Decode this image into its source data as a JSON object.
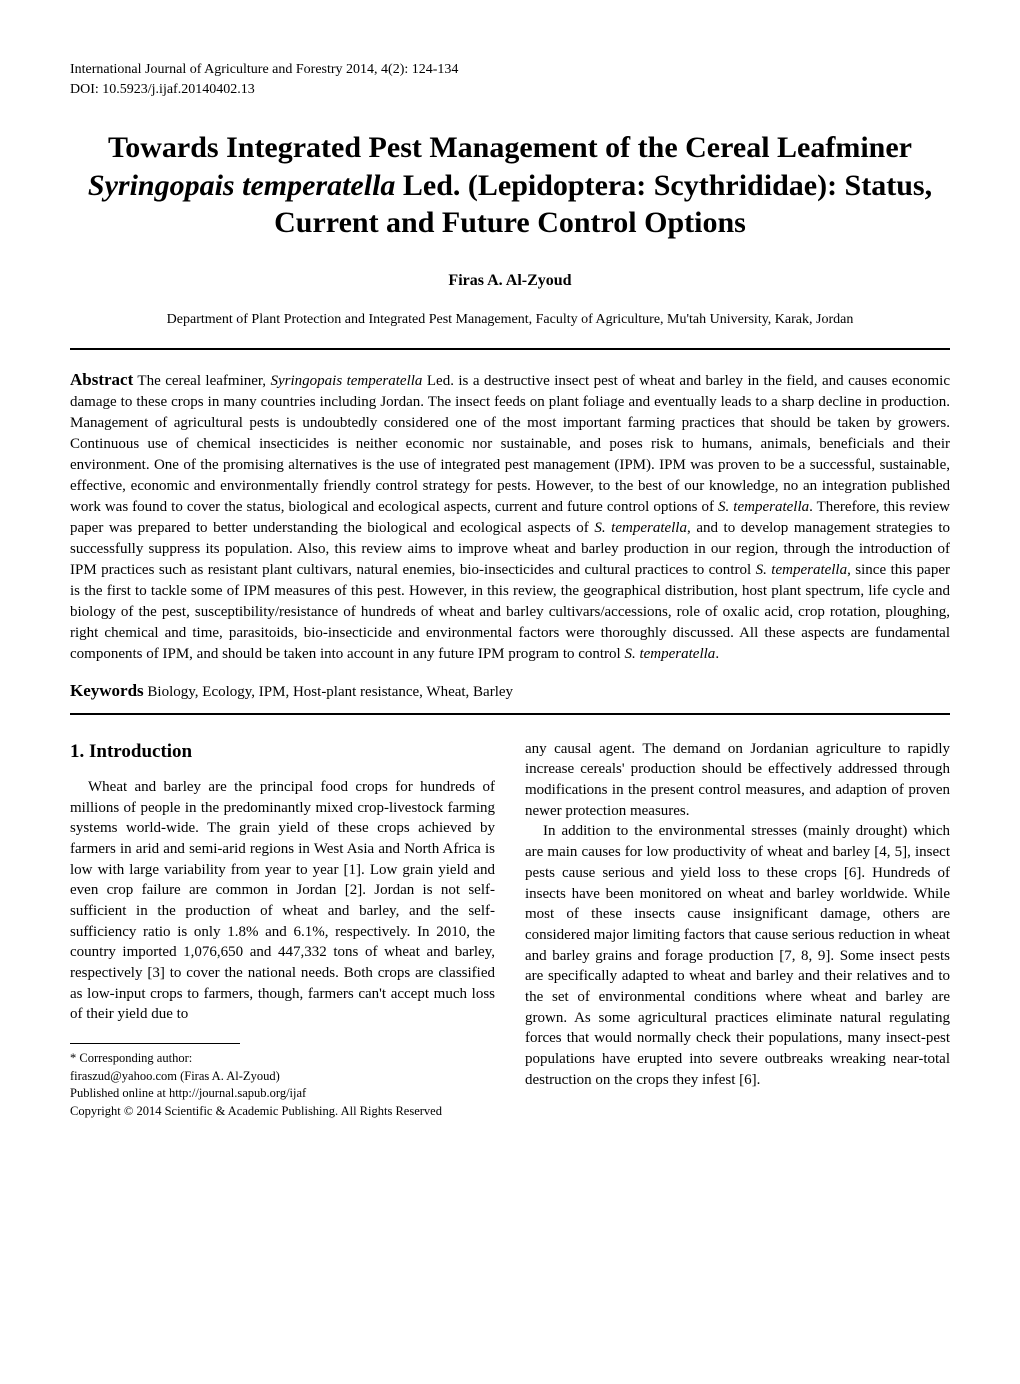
{
  "header": {
    "journal_line": "International Journal of Agriculture and Forestry 2014, 4(2): 124-134",
    "doi_line": "DOI: 10.5923/j.ijaf.20140402.13"
  },
  "title_parts": {
    "p1": "Towards Integrated Pest Management of the Cereal Leafminer ",
    "italic": "Syringopais temperatella",
    "p2": " Led. (Lepidoptera: Scythrididae): Status, Current and Future Control Options"
  },
  "author": "Firas A. Al-Zyoud",
  "affiliation": "Department of Plant Protection and Integrated Pest Management, Faculty of Agriculture, Mu'tah University, Karak, Jordan",
  "abstract": {
    "label": "Abstract",
    "pre": "  The cereal leafminer, ",
    "italic1": "Syringopais temperatella",
    "mid1": " Led. is a destructive insect pest of wheat and barley in the field, and causes economic damage to these crops in many countries including Jordan. The insect feeds on plant foliage and eventually leads to a sharp decline in production. Management of agricultural pests is undoubtedly considered one of the most important farming practices that should be taken by growers. Continuous use of chemical insecticides is neither economic nor sustainable, and poses risk to humans, animals, beneficials and their environment. One of the promising alternatives is the use of integrated pest management (IPM). IPM was proven to be a successful, sustainable, effective, economic and environmentally friendly control strategy for pests. However, to the best of our knowledge, no an integration published work was found to cover the status, biological and ecological aspects, current and future control options of ",
    "italic2": "S. temperatella",
    "mid2": ". Therefore, this review paper was prepared to better understanding the biological and ecological aspects of ",
    "italic3": "S. temperatella",
    "mid3": ", and to develop management strategies to successfully suppress its population. Also, this review aims to improve wheat and barley production in our region, through the introduction of IPM practices such as resistant plant cultivars, natural enemies, bio-insecticides and cultural practices to control ",
    "italic4": "S. temperatella",
    "mid4": ", since this paper is the first to tackle some of IPM measures of this pest. However, in this review, the geographical distribution, host plant spectrum, life cycle and biology of the pest, susceptibility/resistance of hundreds of wheat and barley cultivars/accessions, role of oxalic acid, crop rotation, ploughing, right chemical and time, parasitoids, bio-insecticide and environmental factors were thoroughly discussed. All these aspects are fundamental components of IPM, and should be taken into account in any future IPM program to control ",
    "italic5": "S. temperatella",
    "end": "."
  },
  "keywords": {
    "label": "Keywords",
    "text": "  Biology, Ecology, IPM, Host-plant resistance, Wheat, Barley"
  },
  "section1": {
    "heading": "1. Introduction",
    "left_p1": "Wheat and barley are the principal food crops for hundreds of millions of people in the predominantly mixed crop-livestock farming systems world-wide. The grain yield of these crops achieved by farmers in arid and semi-arid regions in West Asia and North Africa is low with large variability from year to year [1]. Low grain yield and even crop failure are common in Jordan [2]. Jordan is not self-sufficient in the production of wheat and barley, and the self-sufficiency ratio is only 1.8% and 6.1%, respectively. In 2010, the country imported 1,076,650 and 447,332 tons of wheat and barley, respectively [3] to cover the national needs. Both crops are classified as low-input crops to farmers, though, farmers can't accept much loss of their yield due to",
    "right_p1": "any causal agent. The demand on Jordanian agriculture to rapidly increase cereals' production should be effectively addressed through modifications in the present control measures, and adaption of proven newer protection measures.",
    "right_p2": "In addition to the environmental stresses (mainly drought) which are main causes for low productivity of wheat and barley [4, 5], insect pests cause serious and yield loss to these crops [6]. Hundreds of insects have been monitored on wheat and barley worldwide. While most of these insects cause insignificant damage, others are considered major limiting factors that cause serious reduction in wheat and barley grains and forage production [7, 8, 9]. Some insect pests are specifically adapted to wheat and barley and their relatives and to the set of environmental conditions where wheat and barley are grown. As some agricultural practices eliminate natural regulating forces that would normally check their populations, many insect-pest populations have erupted into severe outbreaks wreaking near-total destruction on the crops they infest [6]."
  },
  "footnote": {
    "l1": "* Corresponding author:",
    "l2": "firaszud@yahoo.com (Firas A. Al-Zyoud)",
    "l3": "Published online at http://journal.sapub.org/ijaf",
    "l4": "Copyright © 2014 Scientific & Academic Publishing. All Rights Reserved"
  }
}
